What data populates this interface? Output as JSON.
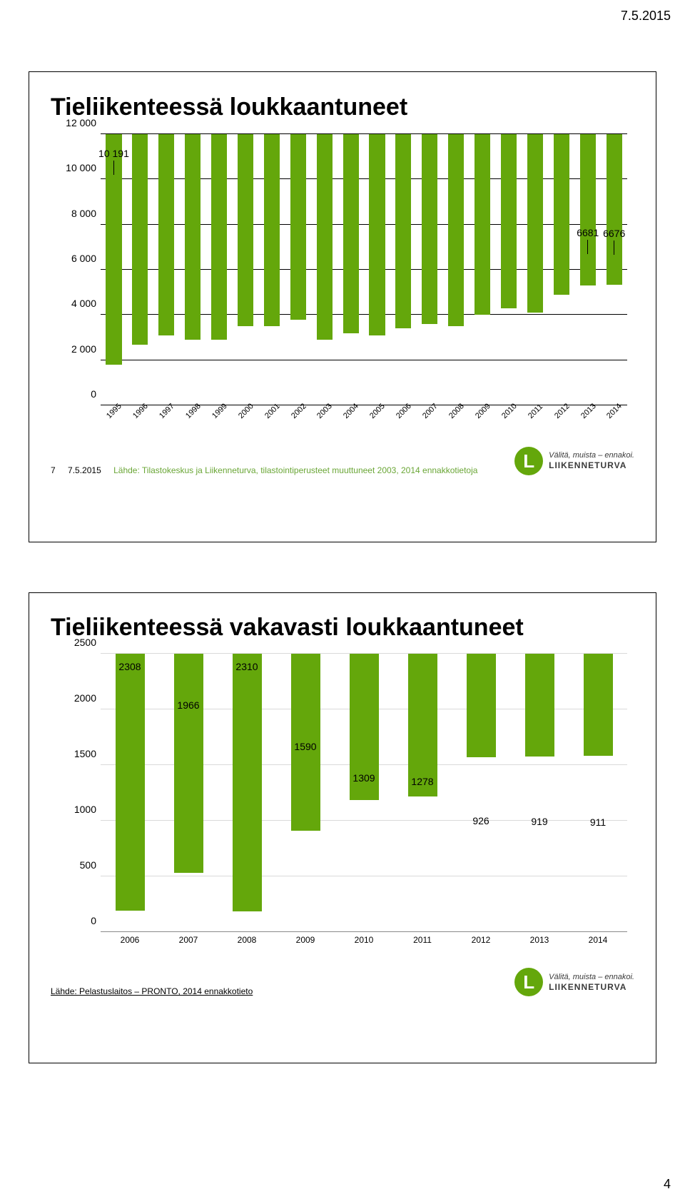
{
  "page": {
    "top_date": "7.5.2015",
    "page_number": "4"
  },
  "slide1": {
    "title": "Tieliikenteessä loukkaantuneet",
    "chart": {
      "type": "bar",
      "categories": [
        "1995",
        "1996",
        "1997",
        "1998",
        "1999",
        "2000",
        "2001",
        "2002",
        "2003",
        "2004",
        "2005",
        "2006",
        "2007",
        "2008",
        "2009",
        "2010",
        "2011",
        "2012",
        "2013",
        "2014"
      ],
      "values": [
        10191,
        9300,
        8900,
        9100,
        9100,
        8500,
        8500,
        8200,
        9100,
        8800,
        8900,
        8600,
        8400,
        8500,
        8000,
        7700,
        7900,
        7100,
        6681,
        6676
      ],
      "bar_color": "#64a70b",
      "grid_color": "#000000",
      "background_color": "#ffffff",
      "ylim": [
        0,
        12000
      ],
      "yticks": [
        0,
        2000,
        4000,
        6000,
        8000,
        10000,
        12000
      ],
      "ytick_labels": [
        "0",
        "2 000",
        "4 000",
        "6 000",
        "8 000",
        "10 000",
        "12 000"
      ],
      "callouts": [
        {
          "index": 0,
          "label": "10 191"
        },
        {
          "index": 18,
          "label": "6681"
        },
        {
          "index": 19,
          "label": "6676"
        }
      ],
      "bar_width": 0.6,
      "title_fontsize": 34,
      "label_fontsize": 14,
      "x_rotation": -45
    },
    "footer": {
      "slide_num": "7",
      "date": "7.5.2015",
      "source": "Lähde: Tilastokeskus ja Liikenneturva, tilastointiperusteet muuttuneet 2003, 2014 ennakkotietoja"
    }
  },
  "slide2": {
    "title": "Tieliikenteessä vakavasti loukkaantuneet",
    "chart": {
      "type": "bar",
      "categories": [
        "2006",
        "2007",
        "2008",
        "2009",
        "2010",
        "2011",
        "2012",
        "2013",
        "2014"
      ],
      "values": [
        2308,
        1966,
        2310,
        1590,
        1309,
        1278,
        926,
        919,
        911
      ],
      "bar_color": "#64a70b",
      "grid_color": "#d9d9d9",
      "axis_color": "#8a8a8a",
      "background_color": "#ffffff",
      "ylim": [
        0,
        2500
      ],
      "yticks": [
        0,
        500,
        1000,
        1500,
        2000,
        2500
      ],
      "ytick_labels": [
        "0",
        "500",
        "1000",
        "1500",
        "2000",
        "2500"
      ],
      "value_labels_above": true,
      "bar_width": 0.5,
      "title_fontsize": 34,
      "label_fontsize": 14
    },
    "footer": {
      "source": "Lähde: Pelastuslaitos – PRONTO, 2014 ennakkotieto"
    }
  },
  "logo": {
    "tagline": "Välitä, muista – ennakoi.",
    "name": "LIIKENNETURVA",
    "mark_bg": "#64a70b",
    "mark_fg": "#ffffff",
    "text_color": "#3a3a3a"
  }
}
